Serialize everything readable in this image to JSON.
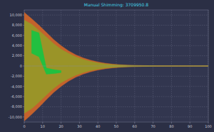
{
  "chart_data": {
    "type": "area",
    "title": "Manual Shimming: 3709950.8",
    "x": [
      0,
      4,
      8,
      12,
      16,
      20,
      24,
      28,
      32,
      36,
      40,
      44,
      48,
      52,
      56,
      60,
      64,
      68,
      72,
      76,
      80,
      84,
      88,
      92,
      96,
      100
    ],
    "series": [
      {
        "color": "#c4622c",
        "values": [
          10500,
          9300,
          8000,
          6600,
          5200,
          4000,
          3000,
          2200,
          1600,
          1150,
          800,
          550,
          380,
          260,
          180,
          120,
          90,
          70,
          55,
          45,
          40,
          35,
          30,
          28,
          25,
          22
        ]
      },
      {
        "color": "#c4622c",
        "values": [
          -10800,
          -9500,
          -8100,
          -6600,
          -5200,
          -4000,
          -3000,
          -2200,
          -1600,
          -1150,
          -800,
          -550,
          -380,
          -260,
          -180,
          -120,
          -90,
          -70,
          -55,
          -45,
          -40,
          -35,
          -30,
          -28,
          -25,
          -22
        ]
      },
      {
        "color": "#9a9428",
        "values": [
          9000,
          8200,
          7000,
          5700,
          4400,
          3300,
          2500,
          1800,
          1300,
          900,
          620,
          420,
          290,
          200,
          140,
          100,
          75,
          60,
          48,
          40,
          35,
          30,
          26,
          24,
          22,
          20
        ]
      },
      {
        "color": "#9a9428",
        "values": [
          -9300,
          -8400,
          -7100,
          -5700,
          -4400,
          -3300,
          -2500,
          -1800,
          -1300,
          -900,
          -620,
          -420,
          -290,
          -200,
          -140,
          -100,
          -75,
          -60,
          -48,
          -40,
          -35,
          -30,
          -26,
          -24,
          -22,
          -20
        ]
      },
      {
        "color": "#22c040",
        "values": [
          null,
          7000,
          6500,
          -400,
          -700,
          -900,
          null,
          null,
          null,
          null,
          null,
          null,
          null,
          null,
          null,
          null,
          null,
          null,
          null,
          null,
          null,
          null,
          null,
          null,
          null,
          null
        ],
        "low": [
          null,
          2500,
          1800,
          -1600,
          -1500,
          -1300,
          null,
          null,
          null,
          null,
          null,
          null,
          null,
          null,
          null,
          null,
          null,
          null,
          null,
          null,
          null,
          null,
          null,
          null,
          null,
          null
        ]
      }
    ],
    "xlim": [
      0,
      100
    ],
    "xticks": [
      0,
      10,
      20,
      30,
      40,
      50,
      60,
      70,
      80,
      90,
      100
    ],
    "ylim": [
      -11000,
      11000
    ],
    "yticks": [
      {
        "value": -10000,
        "label": "-10,000"
      },
      {
        "value": -8000,
        "label": "-8,000"
      },
      {
        "value": -6000,
        "label": "-6,000"
      },
      {
        "value": -4000,
        "label": "-4,000"
      },
      {
        "value": -2000,
        "label": "-2,000"
      },
      0,
      {
        "value": 2000,
        "label": "2,000"
      },
      {
        "value": 4000,
        "label": "4,000"
      },
      {
        "value": 6000,
        "label": "6,000"
      },
      {
        "value": 8000,
        "label": "8,000"
      },
      {
        "value": 10000,
        "label": "10,000"
      }
    ],
    "grid": true
  }
}
